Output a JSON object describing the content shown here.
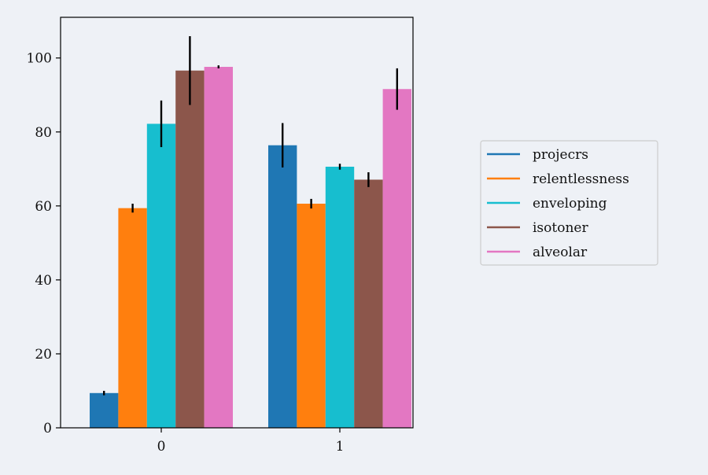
{
  "chart_data": {
    "type": "bar",
    "title": "",
    "xlabel": "",
    "ylabel": "",
    "categories": [
      "0",
      "1"
    ],
    "ylim": [
      0,
      111
    ],
    "yticks": [
      0,
      20,
      40,
      60,
      80,
      100
    ],
    "grid": false,
    "legend_position": "right",
    "series": [
      {
        "name": "projecrs",
        "color": "#1f77b4",
        "values": [
          9.4,
          76.4
        ],
        "errors": [
          0.6,
          6.0
        ]
      },
      {
        "name": "relentlessness",
        "color": "#ff7f0e",
        "values": [
          59.4,
          60.6
        ],
        "errors": [
          1.2,
          1.3
        ]
      },
      {
        "name": "enveloping",
        "color": "#17becf",
        "values": [
          82.2,
          70.6
        ],
        "errors": [
          6.3,
          0.8
        ]
      },
      {
        "name": "isotoner",
        "color": "#8c564b",
        "values": [
          96.6,
          67.1
        ],
        "errors": [
          9.3,
          2.0
        ]
      },
      {
        "name": "alveolar",
        "color": "#e377c2",
        "values": [
          97.6,
          91.6
        ],
        "errors": [
          0.4,
          5.6
        ]
      }
    ]
  }
}
